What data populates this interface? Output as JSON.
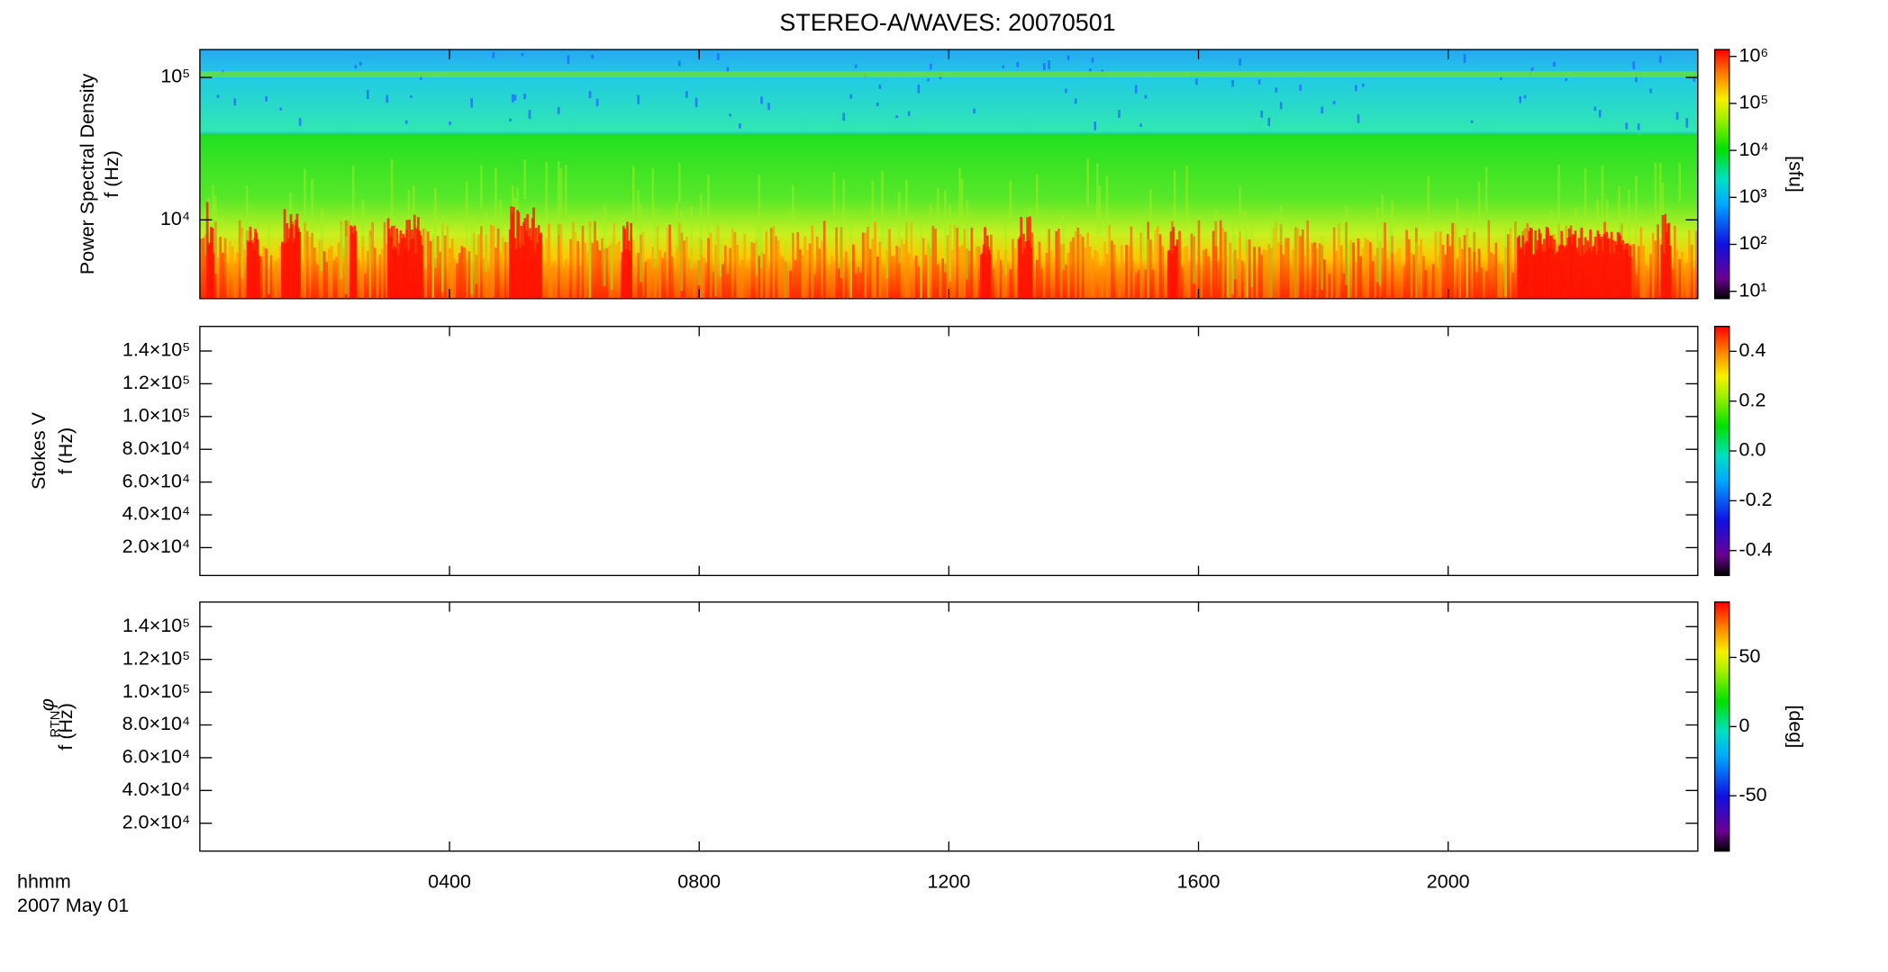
{
  "title": "STEREO-A/WAVES: 20070501",
  "x_axis": {
    "label": "hhmm",
    "date": "2007 May 01",
    "xlim": [
      0,
      24
    ],
    "xticks": [
      {
        "value": 4,
        "label": "0400"
      },
      {
        "value": 8,
        "label": "0800"
      },
      {
        "value": 12,
        "label": "1200"
      },
      {
        "value": 16,
        "label": "1600"
      },
      {
        "value": 20,
        "label": "2000"
      }
    ]
  },
  "chart_data": [
    {
      "type": "spectrogram",
      "filled": true,
      "ylabel": "Power Spectral Density",
      "ylabel2": "f (Hz)",
      "log_y": true,
      "ylim": [
        2800,
        157000
      ],
      "yticks": [
        {
          "value": 10000,
          "label": "10⁴"
        },
        {
          "value": 100000,
          "label": "10⁵"
        }
      ],
      "colorbar": {
        "log": true,
        "clim": [
          7,
          1400000
        ],
        "label": "[sfu]",
        "ticks": [
          {
            "value": 10,
            "label": "10¹"
          },
          {
            "value": 100,
            "label": "10²"
          },
          {
            "value": 1000,
            "label": "10³"
          },
          {
            "value": 10000,
            "label": "10⁴"
          },
          {
            "value": 100000,
            "label": "10⁵"
          },
          {
            "value": 1000000,
            "label": "10⁶"
          }
        ]
      }
    },
    {
      "type": "spectrogram",
      "filled": false,
      "ylabel": "Stokes V",
      "ylabel2": "f (Hz)",
      "log_y": false,
      "ylim": [
        3000,
        155000
      ],
      "yticks": [
        {
          "value": 20000,
          "label": "2.0×10⁴"
        },
        {
          "value": 40000,
          "label": "4.0×10⁴"
        },
        {
          "value": 60000,
          "label": "6.0×10⁴"
        },
        {
          "value": 80000,
          "label": "8.0×10⁴"
        },
        {
          "value": 100000,
          "label": "1.0×10⁵"
        },
        {
          "value": 120000,
          "label": "1.2×10⁵"
        },
        {
          "value": 140000,
          "label": "1.4×10⁵"
        }
      ],
      "colorbar": {
        "log": false,
        "clim": [
          -0.5,
          0.5
        ],
        "ticks": [
          -0.4,
          -0.2,
          {
            "value": 0,
            "label": "0.0"
          },
          0.2,
          0.4
        ]
      }
    },
    {
      "type": "spectrogram",
      "filled": false,
      "ylabel": "φ",
      "ylabel_sub": "RTN",
      "ylabel2": "f (Hz)",
      "log_y": false,
      "ylim": [
        3000,
        155000
      ],
      "yticks": [
        {
          "value": 20000,
          "label": "2.0×10⁴"
        },
        {
          "value": 40000,
          "label": "4.0×10⁴"
        },
        {
          "value": 60000,
          "label": "6.0×10⁴"
        },
        {
          "value": 80000,
          "label": "8.0×10⁴"
        },
        {
          "value": 100000,
          "label": "1.0×10⁵"
        },
        {
          "value": 120000,
          "label": "1.2×10⁵"
        },
        {
          "value": 140000,
          "label": "1.4×10⁵"
        }
      ],
      "colorbar": {
        "log": false,
        "clim": [
          -90,
          90
        ],
        "label": "[deg]",
        "ticks": [
          -50,
          0,
          50
        ]
      }
    }
  ]
}
